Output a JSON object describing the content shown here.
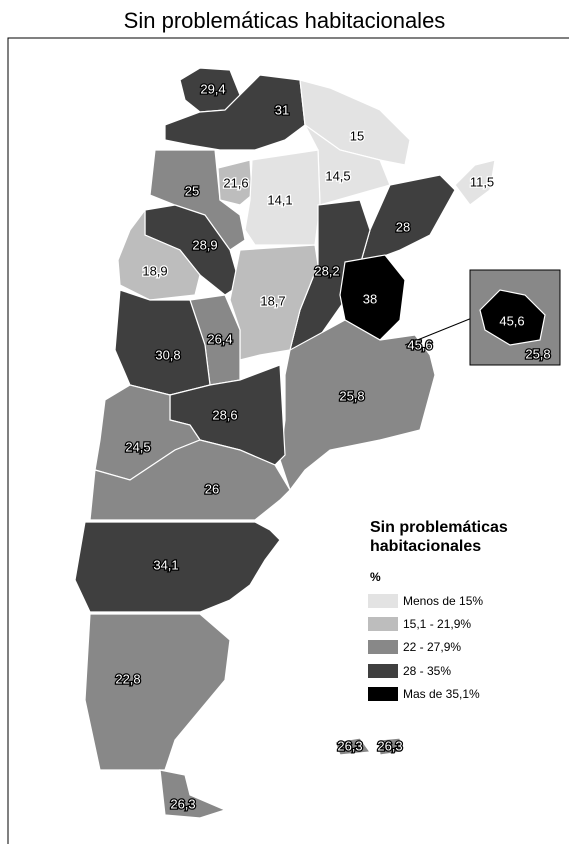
{
  "title": "Sin problemáticas habitacionales",
  "regions": [
    {
      "label": "29,4"
    },
    {
      "label": "31"
    },
    {
      "label": "15"
    },
    {
      "label": "14,5"
    },
    {
      "label": "11,5"
    },
    {
      "label": "25"
    },
    {
      "label": "21,6"
    },
    {
      "label": "14,1"
    },
    {
      "label": "28"
    },
    {
      "label": "28,9"
    },
    {
      "label": "28,2"
    },
    {
      "label": "38"
    },
    {
      "label": "18,9"
    },
    {
      "label": "18,7"
    },
    {
      "label": "26,4"
    },
    {
      "label": "30,8"
    },
    {
      "label": "45,6"
    },
    {
      "label": "25,8"
    },
    {
      "label": "28,6"
    },
    {
      "label": "24,5"
    },
    {
      "label": "26"
    },
    {
      "label": "34,1"
    },
    {
      "label": "22,8"
    },
    {
      "label": "26,3"
    },
    {
      "label": "26,3"
    },
    {
      "label": "26,3"
    }
  ],
  "inset": {
    "city": "45,6",
    "province": "25,8"
  },
  "legend": {
    "title": "Sin problemáticas habitacionales",
    "unit": "%",
    "items": [
      "Menos de 15%",
      "15,1 - 21,9%",
      "22 - 27,9%",
      "28 - 35%",
      "Mas de 35,1%"
    ]
  }
}
